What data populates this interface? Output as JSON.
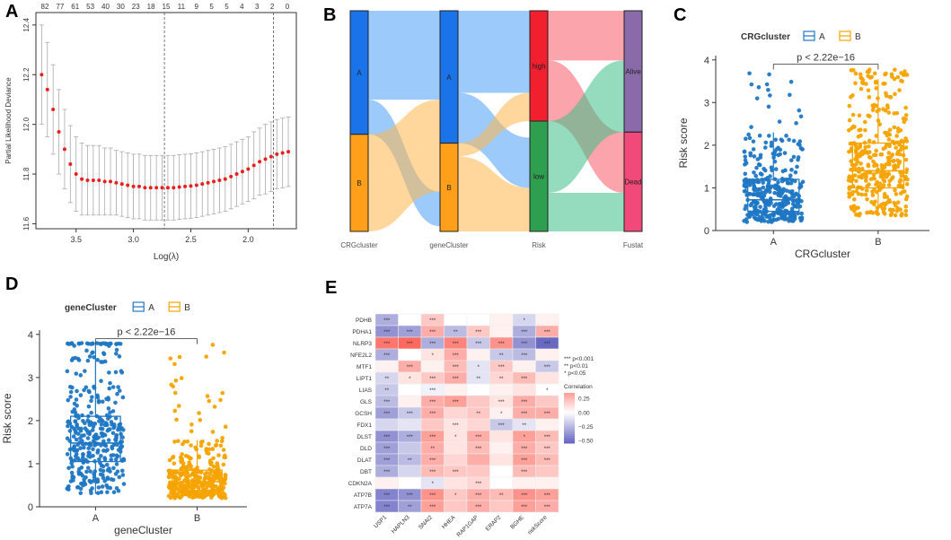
{
  "panel_labels": {
    "a": "A",
    "b": "B",
    "c": "C",
    "d": "D",
    "e": "E"
  },
  "chart_data": [
    {
      "id": "A",
      "type": "line",
      "title": "",
      "xlabel": "Log(λ)",
      "ylabel": "Partial Likelihood Deviance",
      "xlim": [
        3.85,
        1.58
      ],
      "ylim": [
        11.58,
        12.45
      ],
      "x_ticks": [
        "3.5",
        "3.0",
        "2.5",
        "2.0"
      ],
      "y_ticks": [
        "11.6",
        "11.8",
        "12.0",
        "12.2",
        "12.4"
      ],
      "top_ticks": [
        "82",
        "77",
        "61",
        "53",
        "40",
        "30",
        "23",
        "18",
        "15",
        "11",
        "9",
        "5",
        "5",
        "4",
        "3",
        "2",
        "0"
      ],
      "vlines": [
        2.73,
        1.78
      ],
      "series": [
        {
          "name": "Partial Likelihood Deviance",
          "x": [
            3.8,
            3.75,
            3.7,
            3.65,
            3.6,
            3.55,
            3.5,
            3.45,
            3.4,
            3.35,
            3.3,
            3.25,
            3.2,
            3.15,
            3.1,
            3.05,
            3.0,
            2.95,
            2.9,
            2.85,
            2.8,
            2.75,
            2.7,
            2.65,
            2.6,
            2.55,
            2.5,
            2.45,
            2.4,
            2.35,
            2.3,
            2.25,
            2.2,
            2.15,
            2.1,
            2.05,
            2.0,
            1.95,
            1.9,
            1.85,
            1.8,
            1.75,
            1.7,
            1.65
          ],
          "y": [
            12.2,
            12.14,
            12.06,
            11.97,
            11.9,
            11.84,
            11.8,
            11.78,
            11.775,
            11.775,
            11.775,
            11.77,
            11.77,
            11.765,
            11.76,
            11.755,
            11.75,
            11.75,
            11.745,
            11.745,
            11.745,
            11.745,
            11.745,
            11.745,
            11.748,
            11.75,
            11.752,
            11.755,
            11.76,
            11.765,
            11.77,
            11.775,
            11.78,
            11.79,
            11.8,
            11.81,
            11.82,
            11.835,
            11.85,
            11.86,
            11.87,
            11.88,
            11.885,
            11.89
          ],
          "err": [
            0.2,
            0.19,
            0.18,
            0.17,
            0.16,
            0.155,
            0.15,
            0.145,
            0.14,
            0.14,
            0.14,
            0.135,
            0.135,
            0.13,
            0.13,
            0.13,
            0.13,
            0.13,
            0.13,
            0.13,
            0.13,
            0.13,
            0.13,
            0.13,
            0.13,
            0.13,
            0.13,
            0.13,
            0.13,
            0.13,
            0.13,
            0.13,
            0.13,
            0.13,
            0.13,
            0.13,
            0.13,
            0.135,
            0.135,
            0.14,
            0.14,
            0.14,
            0.14,
            0.14
          ]
        }
      ]
    },
    {
      "id": "B",
      "type": "sankey",
      "axes": [
        "CRGcluster",
        "geneCluster",
        "Risk",
        "Fustat"
      ],
      "nodes": [
        {
          "axis": "CRGcluster",
          "label": "A",
          "share": 0.56,
          "color": "#1a73e8"
        },
        {
          "axis": "CRGcluster",
          "label": "B",
          "share": 0.44,
          "color": "#ff9f1a"
        },
        {
          "axis": "geneCluster",
          "label": "A",
          "share": 0.6,
          "color": "#1a73e8"
        },
        {
          "axis": "geneCluster",
          "label": "B",
          "share": 0.4,
          "color": "#ff9f1a"
        },
        {
          "axis": "Risk",
          "label": "high",
          "share": 0.5,
          "color": "#f21f2f"
        },
        {
          "axis": "Risk",
          "label": "low",
          "share": 0.5,
          "color": "#2e9e4f"
        },
        {
          "axis": "Fustat",
          "label": "Alive",
          "share": 0.55,
          "color": "#8a6aa8"
        },
        {
          "axis": "Fustat",
          "label": "Dead",
          "share": 0.45,
          "color": "#f0497a"
        }
      ]
    },
    {
      "id": "C",
      "type": "boxplot",
      "legend_title": "CRGcluster",
      "legend": [
        "A",
        "B"
      ],
      "colors": [
        "#1f77c4",
        "#f5a300"
      ],
      "categories": [
        "A",
        "B"
      ],
      "xlabel": "CRGcluster",
      "ylabel": "Risk score",
      "ylim": [
        0,
        4.1
      ],
      "y_ticks": [
        "0",
        "1",
        "2",
        "3",
        "4"
      ],
      "pvalue": "p < 2.22e−16",
      "box_stats": [
        {
          "group": "A",
          "min": 0.2,
          "q1": 0.45,
          "median": 0.72,
          "q3": 1.2,
          "max": 2.3
        },
        {
          "group": "B",
          "min": 0.35,
          "q1": 1.0,
          "median": 1.4,
          "q3": 2.05,
          "max": 3.55
        }
      ]
    },
    {
      "id": "D",
      "type": "boxplot",
      "legend_title": "geneCluster",
      "legend": [
        "A",
        "B"
      ],
      "colors": [
        "#1f77c4",
        "#f5a300"
      ],
      "categories": [
        "A",
        "B"
      ],
      "xlabel": "geneCluster",
      "ylabel": "Risk score",
      "ylim": [
        0,
        4.1
      ],
      "y_ticks": [
        "0",
        "1",
        "2",
        "3",
        "4"
      ],
      "pvalue": "p < 2.22e−16",
      "box_stats": [
        {
          "group": "A",
          "min": 0.3,
          "q1": 1.05,
          "median": 1.48,
          "q3": 2.1,
          "max": 3.8
        },
        {
          "group": "B",
          "min": 0.2,
          "q1": 0.38,
          "median": 0.58,
          "q3": 0.85,
          "max": 1.55
        }
      ]
    },
    {
      "id": "E",
      "type": "heatmap",
      "rows": [
        "PDHB",
        "PDHA1",
        "NLRP3",
        "NFE2L2",
        "MTF1",
        "LIPT1",
        "LIAS",
        "GLS",
        "GCSH",
        "FDX1",
        "DLST",
        "DLD",
        "DLAT",
        "DBT",
        "CDKN2A",
        "ATP7B",
        "ATP7A"
      ],
      "cols": [
        "USP1",
        "HAPLN3",
        "SNAI2",
        "HHEA",
        "RAP1GAP",
        "ERAP2",
        "BGHE",
        "riskScore"
      ],
      "values": [
        [
          -0.3,
          0.0,
          0.2,
          0.0,
          0.0,
          0.05,
          -0.15,
          0.05
        ],
        [
          -0.4,
          -0.35,
          0.3,
          -0.25,
          0.2,
          0.05,
          -0.3,
          0.3
        ],
        [
          0.5,
          0.55,
          -0.3,
          0.45,
          -0.2,
          0.4,
          -0.4,
          -0.55
        ],
        [
          -0.3,
          0.0,
          0.1,
          0.3,
          0.05,
          -0.2,
          -0.25,
          0.05
        ],
        [
          0.05,
          0.3,
          0.05,
          0.25,
          -0.1,
          0.2,
          0.05,
          -0.2
        ],
        [
          -0.15,
          0.1,
          0.2,
          0.3,
          -0.1,
          0.15,
          0.25,
          0.1
        ],
        [
          -0.2,
          0.0,
          -0.05,
          0.05,
          0.0,
          0.05,
          0.1,
          0.0
        ],
        [
          -0.25,
          0.05,
          0.3,
          0.35,
          0.2,
          0.1,
          0.3,
          0.2
        ],
        [
          -0.35,
          -0.2,
          0.3,
          0.15,
          0.2,
          0.05,
          0.3,
          0.3
        ],
        [
          -0.15,
          -0.1,
          0.2,
          0.1,
          0.15,
          -0.2,
          -0.1,
          0.05
        ],
        [
          -0.4,
          -0.3,
          0.35,
          0.1,
          0.3,
          0.1,
          0.35,
          0.25
        ],
        [
          -0.35,
          -0.2,
          0.3,
          0.1,
          0.25,
          0.05,
          0.3,
          0.2
        ],
        [
          -0.35,
          -0.25,
          0.3,
          0.15,
          0.3,
          0.1,
          0.35,
          0.25
        ],
        [
          -0.3,
          -0.15,
          0.25,
          0.2,
          0.2,
          0.0,
          0.25,
          0.2
        ],
        [
          0.05,
          0.0,
          -0.1,
          0.1,
          0.15,
          0.0,
          0.05,
          0.05
        ],
        [
          -0.45,
          -0.4,
          0.4,
          0.2,
          0.3,
          0.25,
          0.4,
          0.35
        ],
        [
          -0.45,
          -0.35,
          0.35,
          0.2,
          0.3,
          0.2,
          0.35,
          0.3
        ]
      ],
      "stars": [
        [
          "***",
          "",
          "***",
          "",
          "",
          "",
          "*",
          ""
        ],
        [
          "***",
          "***",
          "***",
          "**",
          "***",
          "",
          "***",
          "***"
        ],
        [
          "***",
          "***",
          "***",
          "***",
          "***",
          "***",
          "***",
          "***"
        ],
        [
          "***",
          "",
          "*",
          "***",
          "",
          "**",
          "***",
          ""
        ],
        [
          "",
          "***",
          "",
          "***",
          "*",
          "***",
          "",
          "***"
        ],
        [
          "**",
          "*",
          "***",
          "***",
          "**",
          "**",
          "***",
          ""
        ],
        [
          "**",
          "",
          "***",
          "",
          "",
          "",
          "",
          "*"
        ],
        [
          "***",
          "",
          "***",
          "***",
          "",
          "***",
          "***",
          ""
        ],
        [
          "***",
          "***",
          "***",
          "",
          "**",
          "*",
          "***",
          "***"
        ],
        [
          "",
          "",
          "",
          "***",
          "",
          "***",
          "**",
          ""
        ],
        [
          "***",
          "***",
          "***",
          "*",
          "***",
          "",
          "*",
          "***"
        ],
        [
          "***",
          "",
          "**",
          "",
          "***",
          "",
          "***",
          "***"
        ],
        [
          "***",
          "**",
          "***",
          "",
          "",
          "",
          "***",
          "***"
        ],
        [
          "***",
          "",
          "***",
          "***",
          "",
          "",
          "***",
          ""
        ],
        [
          "",
          "",
          "*",
          "",
          "***",
          "",
          "",
          ""
        ],
        [
          "***",
          "***",
          "***",
          "*",
          "***",
          "**",
          "***",
          "***"
        ],
        [
          "***",
          "**",
          "***",
          "",
          "***",
          "",
          "***",
          "***"
        ]
      ],
      "sig_legend": [
        "*** p<0.001",
        "** p<0.01",
        "* p<0.05"
      ],
      "colorbar_title": "Correlation",
      "colorbar_ticks": [
        "0.25",
        "0.00",
        "−0.25",
        "−0.50"
      ]
    }
  ]
}
